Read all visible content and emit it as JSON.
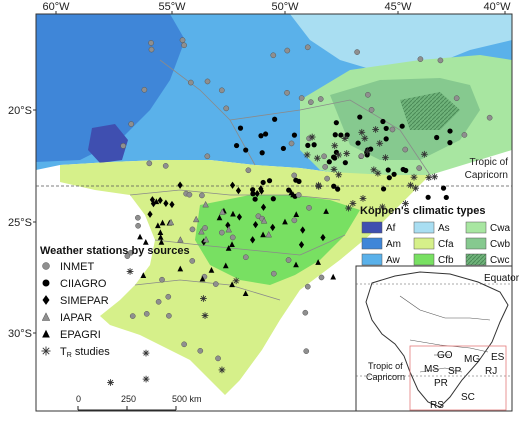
{
  "axes": {
    "top_labels": [
      "60°W",
      "55°W",
      "50°W",
      "45°W",
      "40°W"
    ],
    "left_labels": [
      "20°S",
      "25°S",
      "30°S"
    ]
  },
  "tropic_label": "Tropic of Capricorn",
  "tropic_lines": [
    "Tropic of",
    "Capricorn"
  ],
  "climate_legend": {
    "title": "Köppen's climatic types",
    "items": [
      {
        "code": "Af",
        "color": "#3f4fb0"
      },
      {
        "code": "As",
        "color": "#a9def2"
      },
      {
        "code": "Cwa",
        "color": "#a8e6a1"
      },
      {
        "code": "Am",
        "color": "#3f86d8"
      },
      {
        "code": "Cfa",
        "color": "#d6f08a"
      },
      {
        "code": "Cwb",
        "color": "#86c98f"
      },
      {
        "code": "Aw",
        "color": "#5ab1ea"
      },
      {
        "code": "Cfb",
        "color": "#78e062"
      },
      {
        "code": "Cwc",
        "color": "#5aa06a"
      }
    ]
  },
  "stations_legend": {
    "title": "Weather stations by sources",
    "items": [
      {
        "label": "INMET",
        "symbol": "circle-gray"
      },
      {
        "label": "CIIAGRO",
        "symbol": "circle-black"
      },
      {
        "label": "SIMEPAR",
        "symbol": "diamond-black"
      },
      {
        "label": "IAPAR",
        "symbol": "triangle-gray"
      },
      {
        "label": "EPAGRI",
        "symbol": "triangle-black"
      },
      {
        "label": "TR studies",
        "symbol": "asterisk"
      }
    ],
    "tr_main": "T",
    "tr_sub": "R",
    "tr_rest": " studies"
  },
  "scalebar": {
    "ticks": [
      "0",
      "250",
      "500 km"
    ]
  },
  "inset": {
    "equator": "Equator",
    "tropic_lines": [
      "Tropic of",
      "Capricorn"
    ],
    "states": [
      "GO",
      "MG",
      "ES",
      "MS",
      "SP",
      "RJ",
      "PR",
      "SC",
      "RS"
    ]
  }
}
